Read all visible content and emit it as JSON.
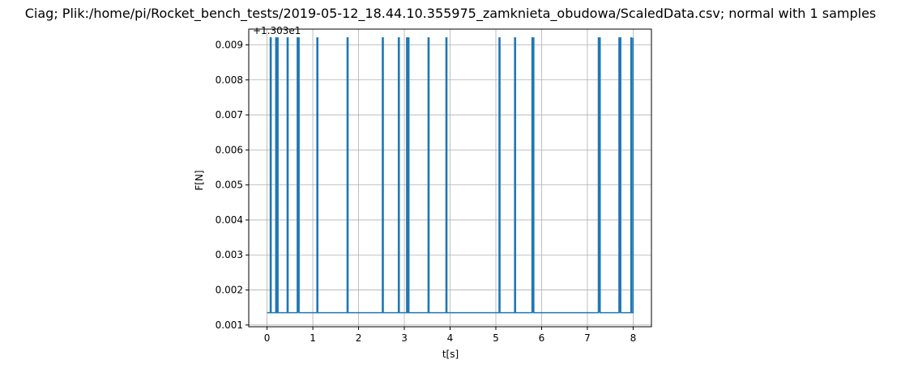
{
  "chart_data": {
    "type": "line",
    "title": "Ciag; Plik:/home/pi/Rocket_bench_tests/2019-05-12_18.44.10.355975_zamknieta_obudowa/ScaledData.csv; normal with 1 samples",
    "xlabel": "t[s]",
    "ylabel": "F[N]",
    "offset_text": "+1.303e1",
    "xlim": [
      -0.4,
      8.4
    ],
    "ylim": [
      0.00095,
      0.00945
    ],
    "xticks": [
      0,
      1,
      2,
      3,
      4,
      5,
      6,
      7,
      8
    ],
    "yticks": [
      0.001,
      0.002,
      0.003,
      0.004,
      0.005,
      0.006,
      0.007,
      0.008,
      0.009
    ],
    "ytick_labels": [
      "0.001",
      "0.002",
      "0.003",
      "0.004",
      "0.005",
      "0.006",
      "0.007",
      "0.008",
      "0.009"
    ],
    "grid": true,
    "line_color": "#1f77b4",
    "series": [
      {
        "baseline": 0.00135,
        "spike_value": 0.0092,
        "x_start": 0.0,
        "x_end": 8.0,
        "spike_times": [
          0.08,
          0.2,
          0.23,
          0.45,
          0.67,
          0.69,
          1.1,
          1.76,
          2.53,
          2.88,
          3.06,
          3.09,
          3.53,
          3.92,
          5.08,
          5.42,
          5.8,
          5.82,
          7.25,
          7.27,
          7.7,
          7.72,
          7.96
        ]
      }
    ]
  }
}
